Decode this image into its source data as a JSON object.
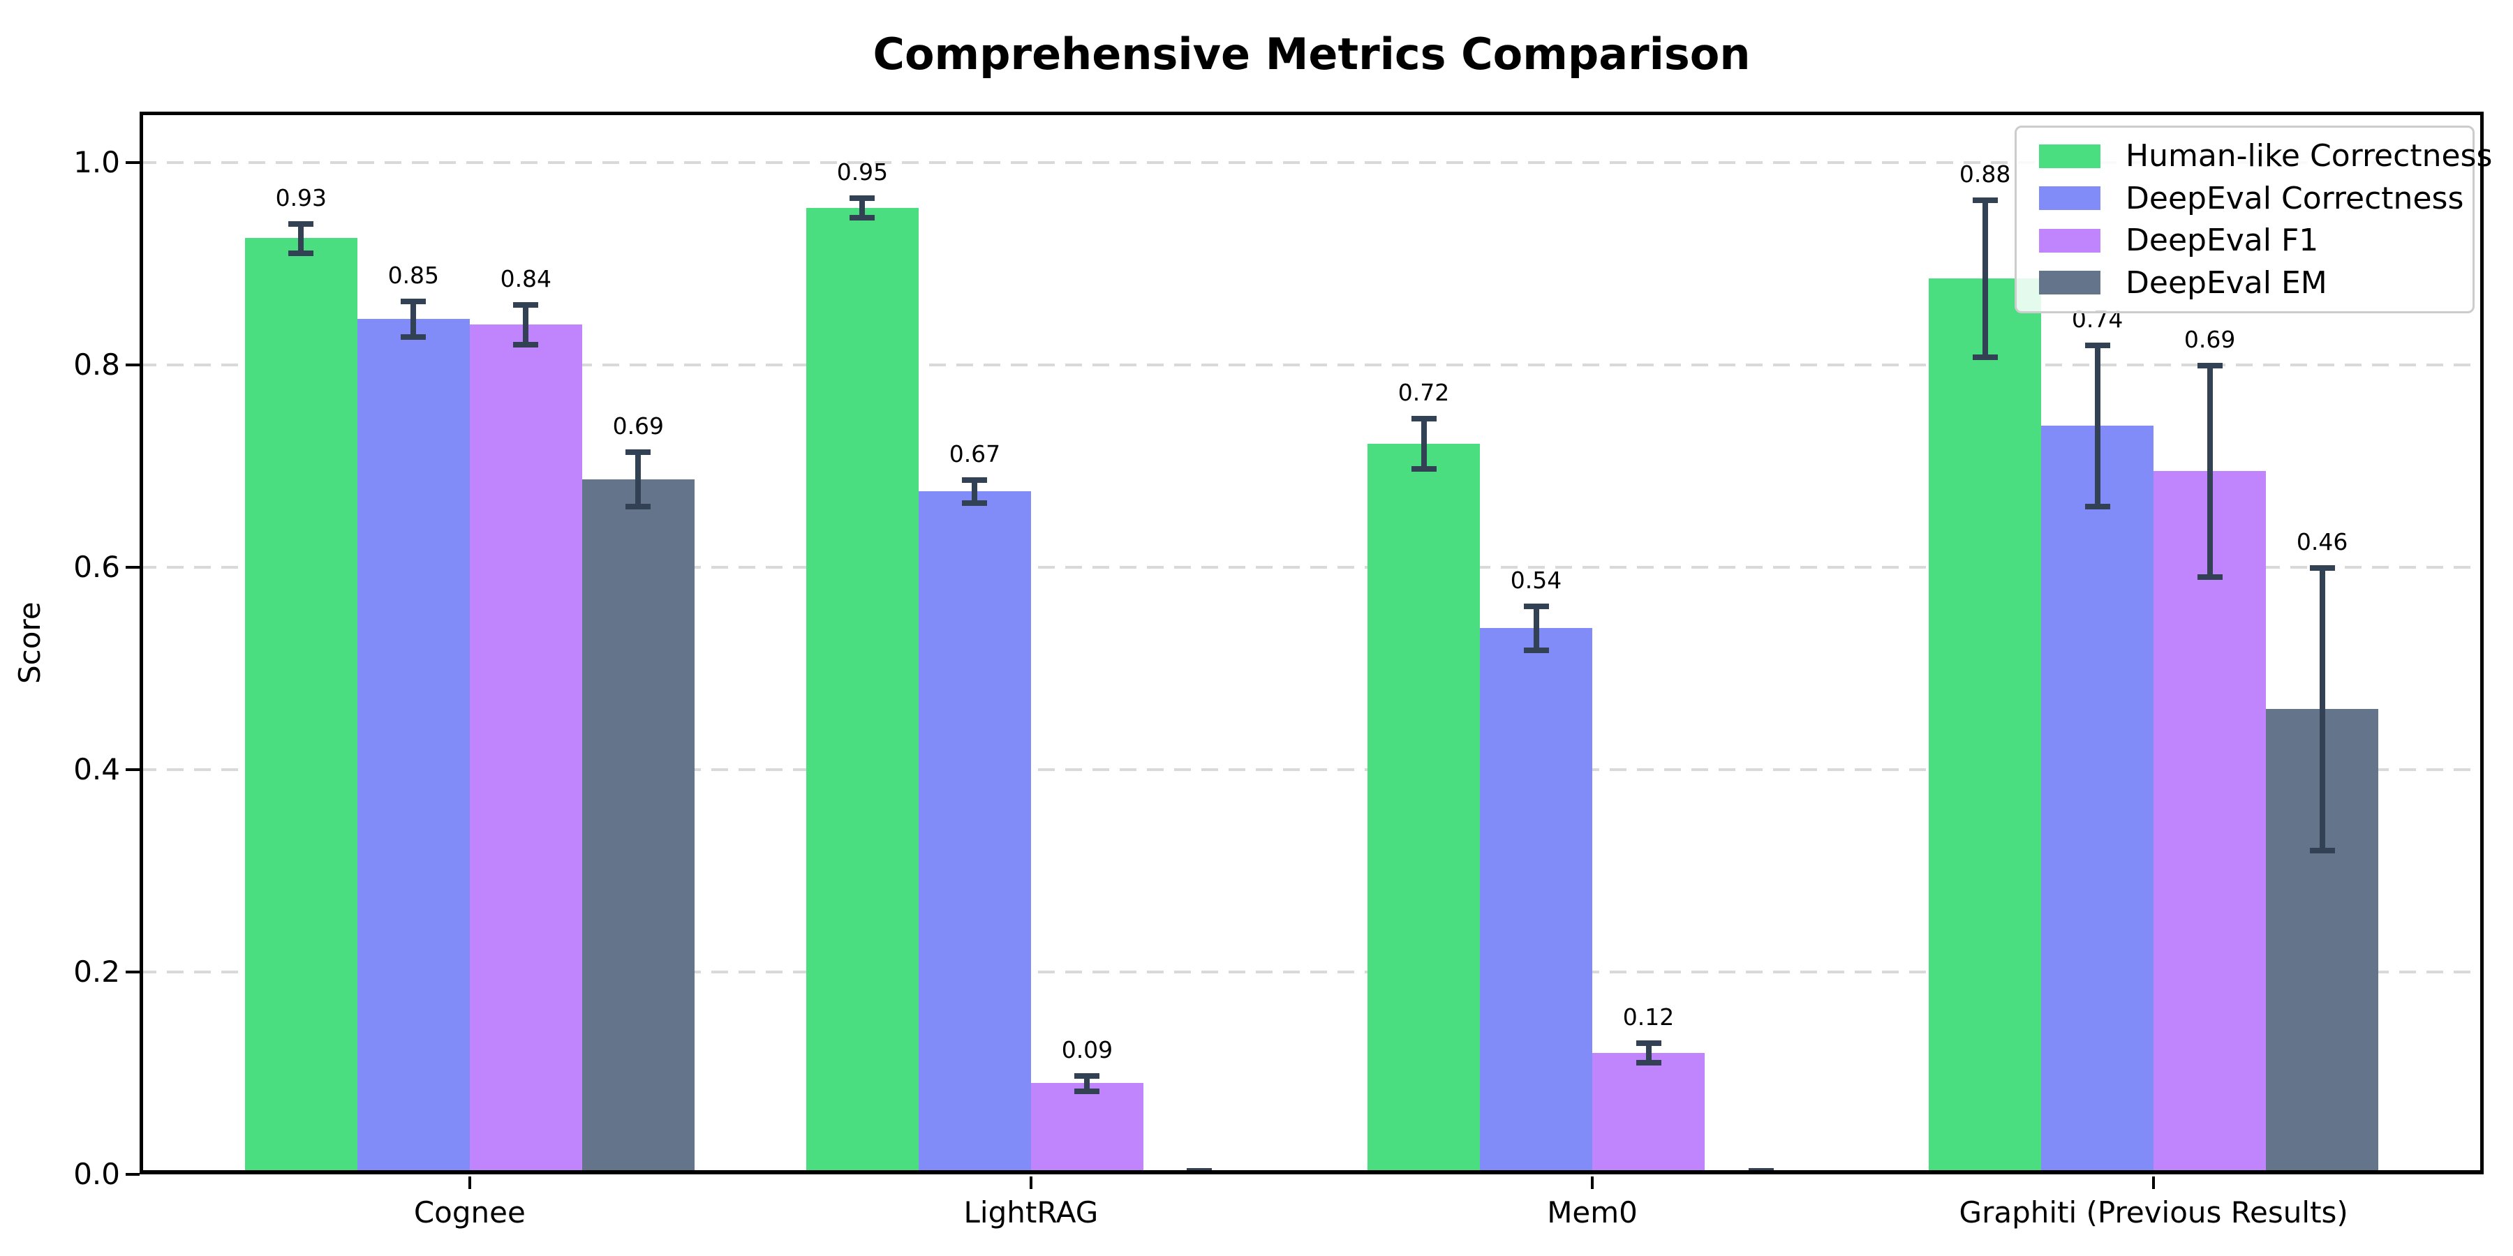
{
  "chart_data": {
    "type": "bar",
    "title": "Comprehensive Metrics Comparison",
    "xlabel": "",
    "ylabel": "Score",
    "categories": [
      "Cognee",
      "LightRAG",
      "Mem0",
      "Graphiti (Previous Results)"
    ],
    "series": [
      {
        "name": "Human-like Correctness",
        "color": "#4ade80",
        "values": [
          0.925,
          0.955,
          0.722,
          0.885
        ],
        "errors": [
          0.015,
          0.01,
          0.025,
          0.078
        ],
        "bar_labels": [
          "0.93",
          "0.95",
          "0.72",
          "0.88"
        ]
      },
      {
        "name": "DeepEval Correctness",
        "color": "#818cf8",
        "values": [
          0.845,
          0.675,
          0.54,
          0.74
        ],
        "errors": [
          0.018,
          0.012,
          0.022,
          0.08
        ],
        "bar_labels": [
          "0.85",
          "0.67",
          "0.54",
          "0.74"
        ]
      },
      {
        "name": "DeepEval F1",
        "color": "#c084fc",
        "values": [
          0.84,
          0.09,
          0.12,
          0.695
        ],
        "errors": [
          0.02,
          0.008,
          0.01,
          0.105
        ],
        "bar_labels": [
          "0.84",
          "0.09",
          "0.12",
          "0.69"
        ]
      },
      {
        "name": "DeepEval EM",
        "color": "#64748b",
        "values": [
          0.687,
          0.0,
          0.0,
          0.46
        ],
        "errors": [
          0.027,
          0.004,
          0.004,
          0.14
        ],
        "bar_labels": [
          "0.69",
          "",
          "",
          "0.46"
        ]
      }
    ],
    "yticks": [
      0.0,
      0.2,
      0.4,
      0.6,
      0.8,
      1.0
    ],
    "ytick_labels": [
      "0.0",
      "0.2",
      "0.4",
      "0.6",
      "0.8",
      "1.0"
    ],
    "ylim": [
      0,
      1.05
    ],
    "grid": {
      "axis": "y",
      "style": "dashed",
      "color": "#d9d9d9"
    },
    "legend": {
      "position": "upper right",
      "entries": [
        "Human-like Correctness",
        "DeepEval Correctness",
        "DeepEval F1",
        "DeepEval EM"
      ]
    },
    "error_bar_color": "#334155"
  }
}
